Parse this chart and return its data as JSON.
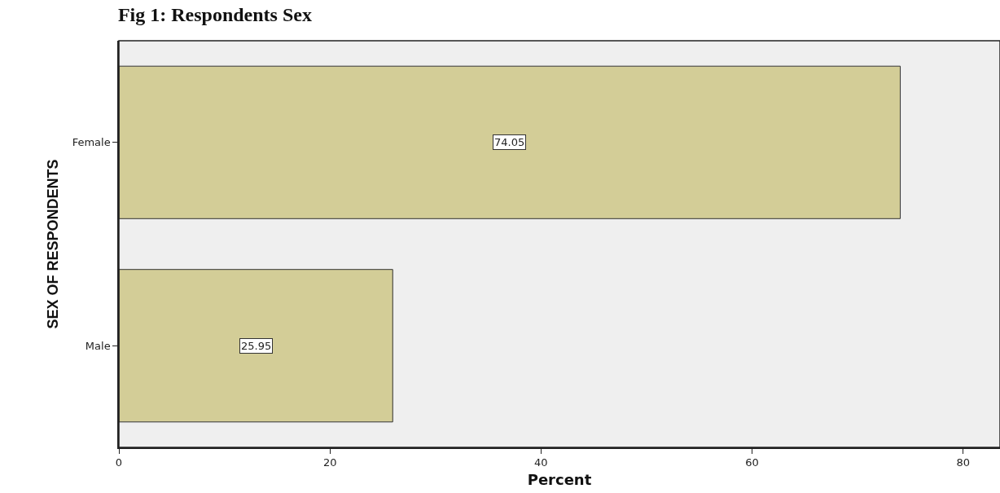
{
  "chart_data": {
    "type": "bar",
    "orientation": "horizontal",
    "title": "Fig 1: Respondents Sex",
    "xlabel": "Percent",
    "ylabel": "SEX OF RESPONDENTS",
    "categories": [
      "Female",
      "Male"
    ],
    "values": [
      74.05,
      25.95
    ],
    "color": "#d3cd97",
    "xlim": [
      0,
      83.5
    ],
    "xticks": [
      0,
      20,
      40,
      60,
      80
    ],
    "grid": false,
    "legend": false,
    "data_labels": true
  }
}
